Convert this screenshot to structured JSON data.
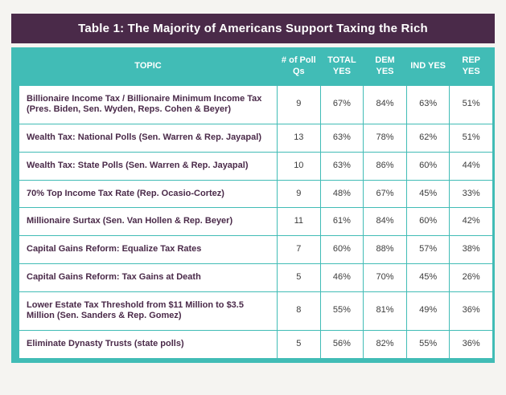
{
  "title": "Table 1: The Majority of Americans Support Taxing the Rich",
  "colors": {
    "title_band_bg": "#4a2a49",
    "header_bg": "#41bcb6",
    "topic_text": "#4a2a49",
    "value_text": "#3c3c3c",
    "page_bg": "#f5f4f1"
  },
  "table": {
    "headers": [
      "TOPIC",
      "# of Poll Qs",
      "TOTAL YES",
      "DEM YES",
      "IND YES",
      "REP YES"
    ],
    "rows": [
      {
        "topic": "Billionaire Income Tax / Billionaire Minimum Income Tax (Pres. Biden, Sen. Wyden, Reps. Cohen & Beyer)",
        "polls": "9",
        "total": "67%",
        "dem": "84%",
        "ind": "63%",
        "rep": "51%"
      },
      {
        "topic": "Wealth Tax: National Polls (Sen. Warren & Rep. Jayapal)",
        "polls": "13",
        "total": "63%",
        "dem": "78%",
        "ind": "62%",
        "rep": "51%"
      },
      {
        "topic": "Wealth Tax: State Polls (Sen. Warren & Rep. Jayapal)",
        "polls": "10",
        "total": "63%",
        "dem": "86%",
        "ind": "60%",
        "rep": "44%"
      },
      {
        "topic": "70% Top Income Tax Rate (Rep. Ocasio-Cortez)",
        "polls": "9",
        "total": "48%",
        "dem": "67%",
        "ind": "45%",
        "rep": "33%"
      },
      {
        "topic": "Millionaire Surtax (Sen. Van Hollen & Rep. Beyer)",
        "polls": "11",
        "total": "61%",
        "dem": "84%",
        "ind": "60%",
        "rep": "42%"
      },
      {
        "topic": "Capital Gains Reform: Equalize Tax Rates",
        "polls": "7",
        "total": "60%",
        "dem": "88%",
        "ind": "57%",
        "rep": "38%"
      },
      {
        "topic": "Capital Gains Reform: Tax Gains at Death",
        "polls": "5",
        "total": "46%",
        "dem": "70%",
        "ind": "45%",
        "rep": "26%"
      },
      {
        "topic": "Lower Estate Tax Threshold from $11 Million to $3.5 Million (Sen. Sanders & Rep. Gomez)",
        "polls": "8",
        "total": "55%",
        "dem": "81%",
        "ind": "49%",
        "rep": "36%"
      },
      {
        "topic": "Eliminate Dynasty Trusts (state polls)",
        "polls": "5",
        "total": "56%",
        "dem": "82%",
        "ind": "55%",
        "rep": "36%"
      }
    ]
  },
  "chart_data": {
    "type": "table",
    "title": "Table 1: The Majority of Americans Support Taxing the Rich",
    "columns": [
      "TOPIC",
      "# of Poll Qs",
      "TOTAL YES",
      "DEM YES",
      "IND YES",
      "REP YES"
    ],
    "rows": [
      [
        "Billionaire Income Tax / Billionaire Minimum Income Tax (Pres. Biden, Sen. Wyden, Reps. Cohen & Beyer)",
        9,
        "67%",
        "84%",
        "63%",
        "51%"
      ],
      [
        "Wealth Tax: National Polls (Sen. Warren & Rep. Jayapal)",
        13,
        "63%",
        "78%",
        "62%",
        "51%"
      ],
      [
        "Wealth Tax: State Polls (Sen. Warren & Rep. Jayapal)",
        10,
        "63%",
        "86%",
        "60%",
        "44%"
      ],
      [
        "70% Top Income Tax Rate (Rep. Ocasio-Cortez)",
        9,
        "48%",
        "67%",
        "45%",
        "33%"
      ],
      [
        "Millionaire Surtax (Sen. Van Hollen & Rep. Beyer)",
        11,
        "61%",
        "84%",
        "60%",
        "42%"
      ],
      [
        "Capital Gains Reform: Equalize Tax Rates",
        7,
        "60%",
        "88%",
        "57%",
        "38%"
      ],
      [
        "Capital Gains Reform: Tax Gains at Death",
        5,
        "46%",
        "70%",
        "45%",
        "26%"
      ],
      [
        "Lower Estate Tax Threshold from $11 Million to $3.5 Million (Sen. Sanders & Rep. Gomez)",
        8,
        "55%",
        "81%",
        "49%",
        "36%"
      ],
      [
        "Eliminate Dynasty Trusts (state polls)",
        5,
        "56%",
        "82%",
        "55%",
        "36%"
      ]
    ]
  }
}
